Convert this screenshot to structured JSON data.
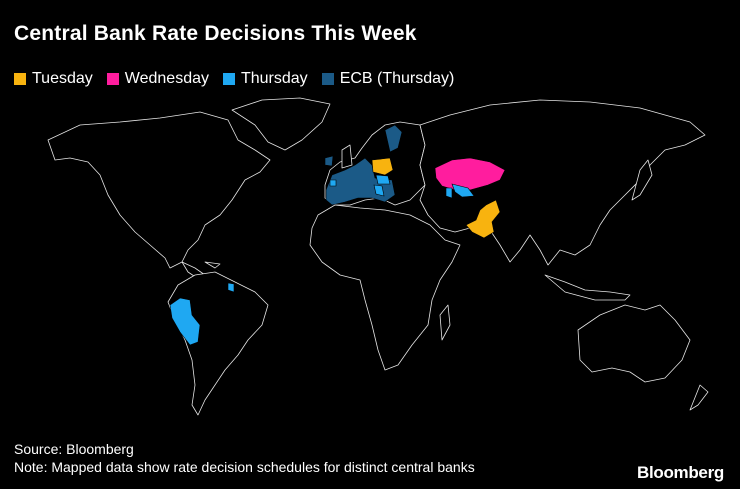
{
  "title": "Central Bank Rate Decisions This Week",
  "legend": [
    {
      "label": "Tuesday",
      "color": "#f8b30f"
    },
    {
      "label": "Wednesday",
      "color": "#ff1d9e"
    },
    {
      "label": "Thursday",
      "color": "#1fa8f2"
    },
    {
      "label": "ECB (Thursday)",
      "color": "#1b5a87"
    }
  ],
  "source": "Source: Bloomberg",
  "note": "Note: Mapped data show rate decision schedules for distinct central banks",
  "logo": "Bloomberg"
}
